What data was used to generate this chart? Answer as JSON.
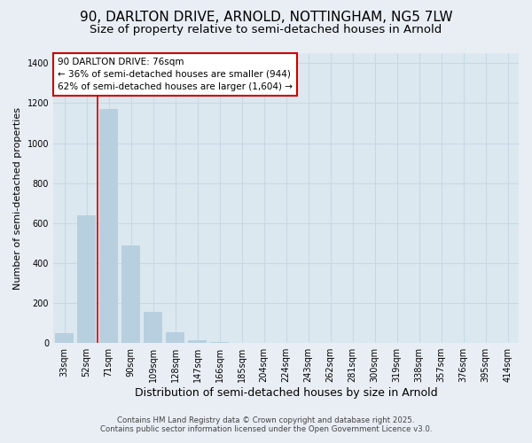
{
  "title_line1": "90, DARLTON DRIVE, ARNOLD, NOTTINGHAM, NG5 7LW",
  "title_line2": "Size of property relative to semi-detached houses in Arnold",
  "xlabel": "Distribution of semi-detached houses by size in Arnold",
  "ylabel": "Number of semi-detached properties",
  "categories": [
    "33sqm",
    "52sqm",
    "71sqm",
    "90sqm",
    "109sqm",
    "128sqm",
    "147sqm",
    "166sqm",
    "185sqm",
    "204sqm",
    "224sqm",
    "243sqm",
    "262sqm",
    "281sqm",
    "300sqm",
    "319sqm",
    "338sqm",
    "357sqm",
    "376sqm",
    "395sqm",
    "414sqm"
  ],
  "values": [
    50,
    640,
    1170,
    490,
    155,
    55,
    15,
    5,
    2,
    1,
    0,
    0,
    0,
    0,
    0,
    0,
    0,
    0,
    0,
    0,
    0
  ],
  "bar_color": "#b8cfe0",
  "vline_index": 2,
  "vline_color": "#cc0000",
  "annotation_text": "90 DARLTON DRIVE: 76sqm\n← 36% of semi-detached houses are smaller (944)\n62% of semi-detached houses are larger (1,604) →",
  "annotation_box_color": "#cc0000",
  "ylim": [
    0,
    1450
  ],
  "footer_line1": "Contains HM Land Registry data © Crown copyright and database right 2025.",
  "footer_line2": "Contains public sector information licensed under the Open Government Licence v3.0.",
  "bg_color": "#e8eef4",
  "plot_bg_color": "#dce8f0",
  "grid_color": "#c8d8e4",
  "title_fontsize": 11,
  "subtitle_fontsize": 9.5
}
